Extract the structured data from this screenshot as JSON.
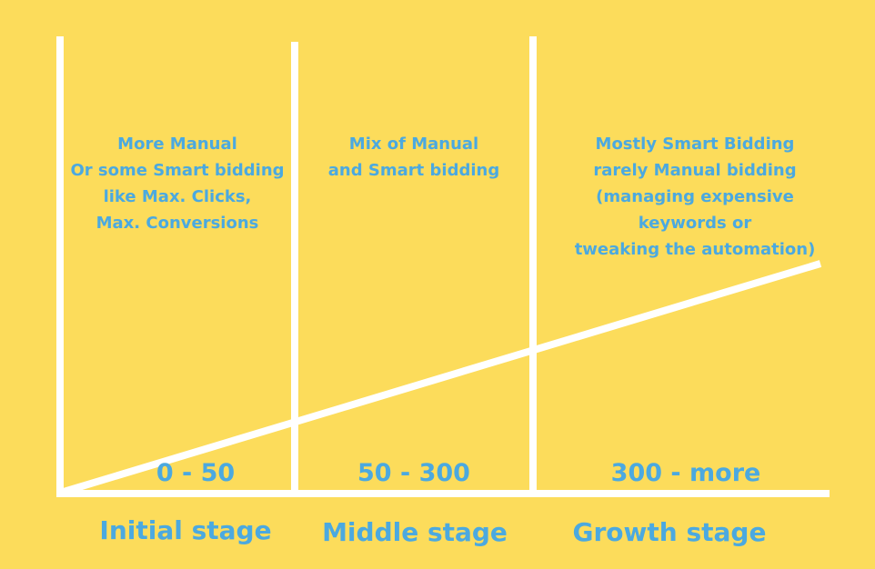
{
  "colors": {
    "background": "#FCDC5B",
    "lines": "#FFFFFF",
    "text": "#4BA9E0"
  },
  "stages": [
    {
      "name": "Initial stage",
      "range": "0 - 50",
      "description": "More Manual\nOr some Smart bidding\nlike Max. Clicks,\nMax. Conversions"
    },
    {
      "name": "Middle stage",
      "range": "50 - 300",
      "description": "Mix  of Manual\nand Smart bidding"
    },
    {
      "name": "Growth stage",
      "range": "300 - more",
      "description": "Mostly Smart Bidding\nrarely Manual bidding\n(managing expensive\nkeywords or\ntweaking the automation)"
    }
  ]
}
